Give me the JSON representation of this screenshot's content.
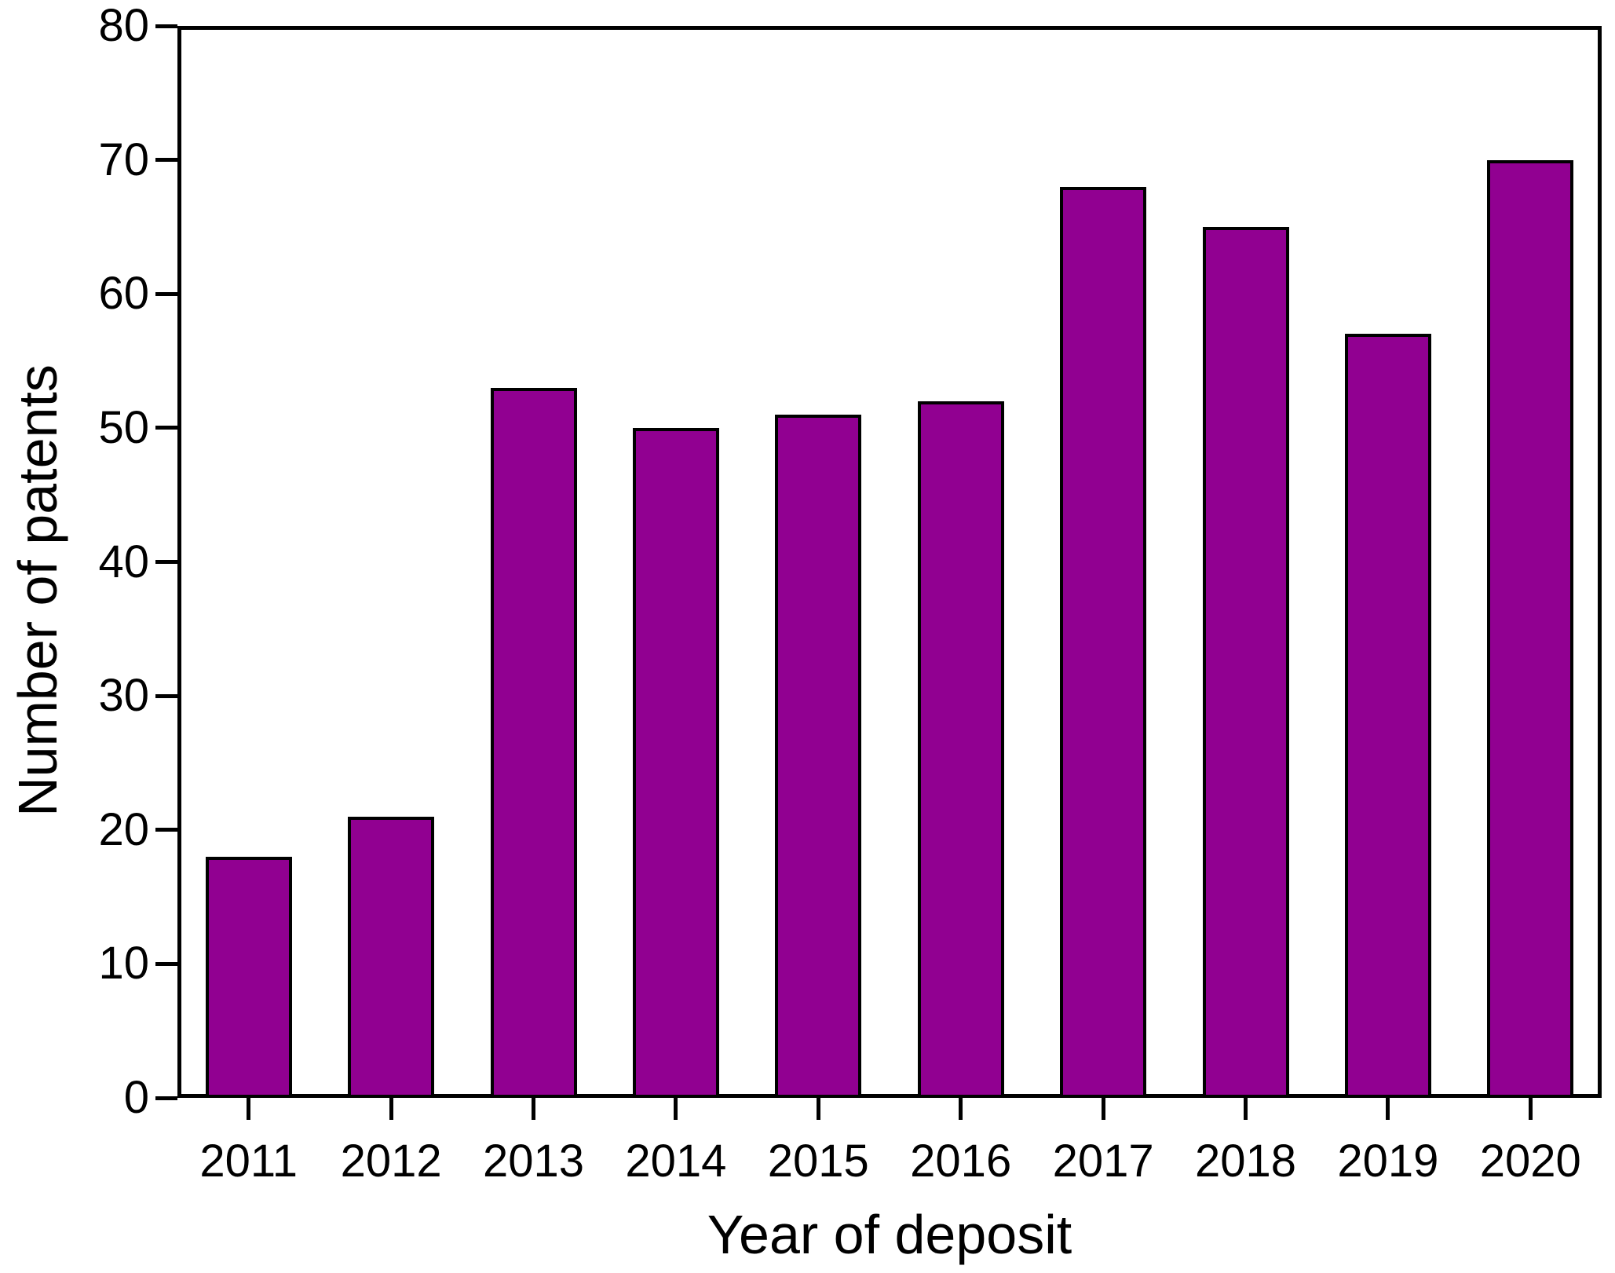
{
  "chart_data": {
    "type": "bar",
    "title": "",
    "xlabel": "Year of deposit",
    "ylabel": "Number of patents",
    "categories": [
      "2011",
      "2012",
      "2013",
      "2014",
      "2015",
      "2016",
      "2017",
      "2018",
      "2019",
      "2020"
    ],
    "values": [
      18,
      21,
      53,
      50,
      51,
      52,
      68,
      65,
      57,
      70
    ],
    "ylim": [
      0,
      80
    ],
    "y_ticks": [
      0,
      10,
      20,
      30,
      40,
      50,
      60,
      70,
      80
    ],
    "grid": false,
    "legend": "none",
    "bar_color": "#910091",
    "bar_border_color": "#000000",
    "axis_color": "#000000",
    "background_color": "#FFFFFF"
  }
}
